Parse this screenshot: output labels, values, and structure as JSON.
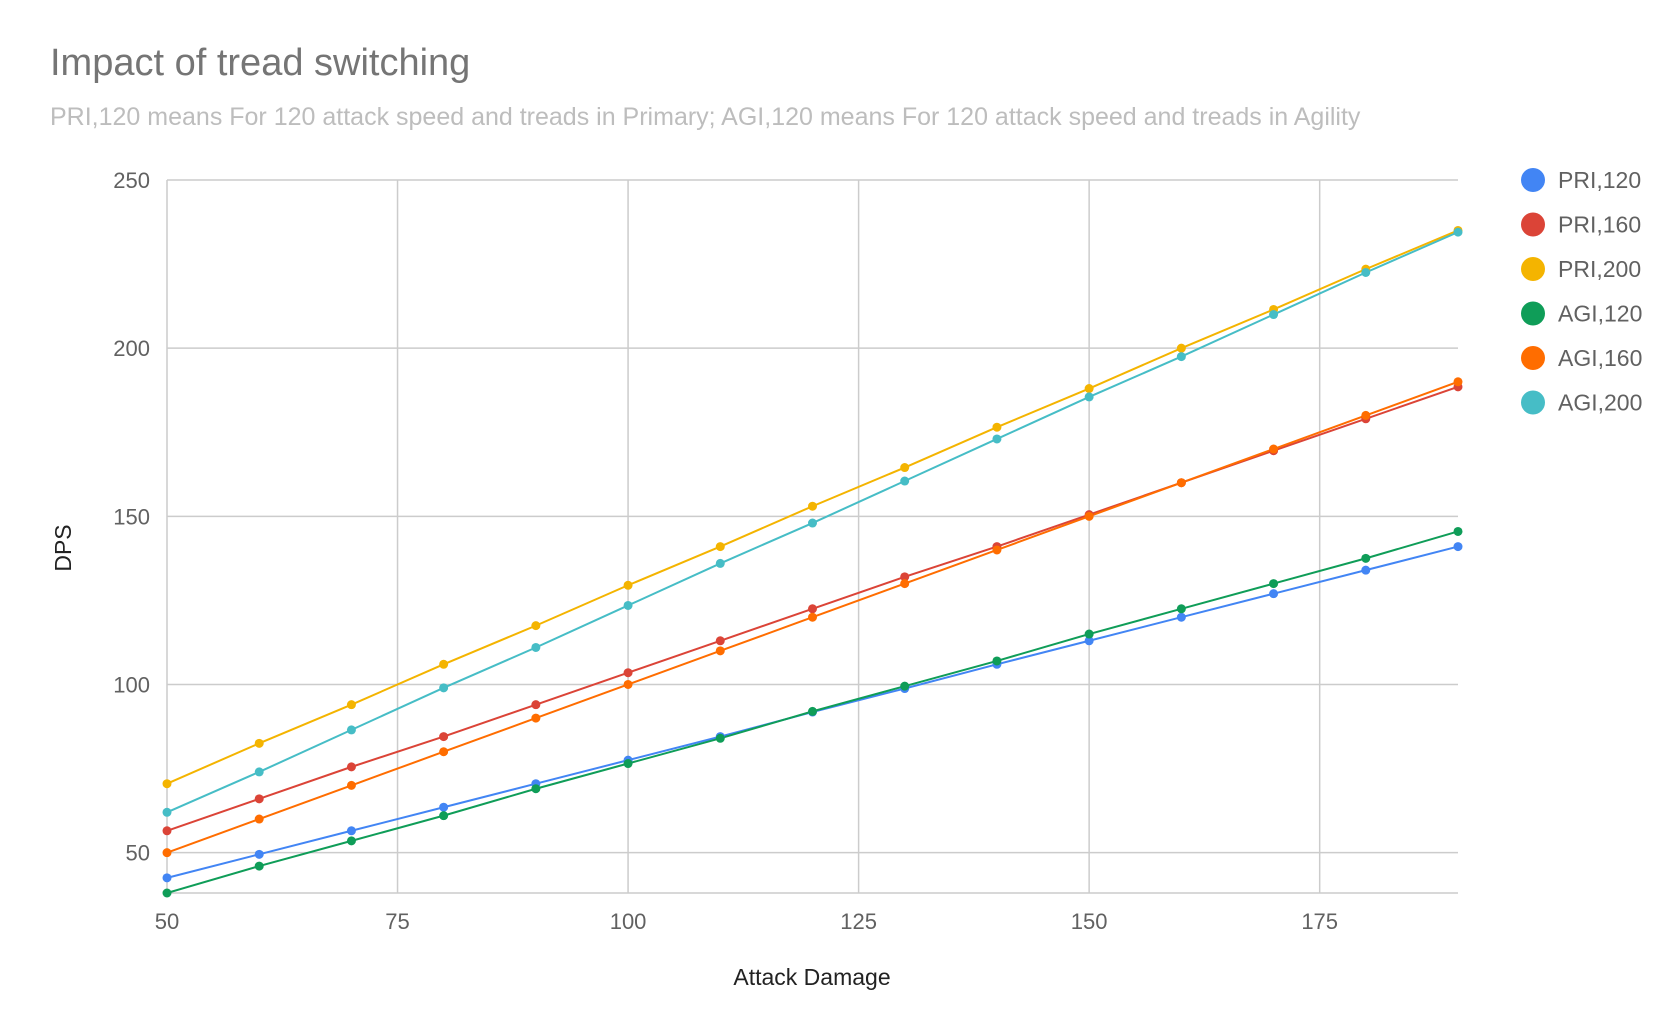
{
  "chart_data": {
    "type": "line",
    "title": "Impact of tread switching",
    "subtitle": "PRI,120 means For 120 attack speed and treads in Primary; AGI,120 means For 120 attack speed and treads in Agility",
    "xlabel": "Attack Damage",
    "ylabel": "DPS",
    "xlim": [
      50,
      190
    ],
    "ylim": [
      38,
      250
    ],
    "x_ticks": [
      50,
      75,
      100,
      125,
      150,
      175
    ],
    "y_ticks": [
      50,
      100,
      150,
      200,
      250
    ],
    "grid": true,
    "legend_position": "right",
    "x": [
      50,
      60,
      70,
      80,
      90,
      100,
      110,
      120,
      130,
      140,
      150,
      160,
      170,
      180,
      190
    ],
    "series": [
      {
        "name": "PRI,120",
        "color": "#4285f4",
        "values": [
          42.5,
          49.5,
          56.5,
          63.5,
          70.5,
          77.5,
          84.5,
          91.8,
          98.8,
          106,
          113,
          120,
          127,
          134,
          141
        ]
      },
      {
        "name": "PRI,160",
        "color": "#db4437",
        "values": [
          56.5,
          66,
          75.5,
          84.5,
          94,
          103.5,
          113,
          122.5,
          132,
          141,
          150.5,
          160,
          169.5,
          179,
          188.5
        ]
      },
      {
        "name": "PRI,200",
        "color": "#f4b400",
        "values": [
          70.5,
          82.5,
          94,
          106,
          117.5,
          129.5,
          141,
          153,
          164.5,
          176.5,
          188,
          200,
          211.5,
          223.5,
          235
        ]
      },
      {
        "name": "AGI,120",
        "color": "#0f9d58",
        "values": [
          38,
          46,
          53.5,
          61,
          69,
          76.5,
          84,
          92,
          99.5,
          107,
          115,
          122.5,
          130,
          137.5,
          145.5
        ]
      },
      {
        "name": "AGI,160",
        "color": "#ff6d00",
        "values": [
          50,
          60,
          70,
          80,
          90,
          100,
          110,
          120,
          130,
          140,
          150,
          160,
          170,
          180,
          190
        ]
      },
      {
        "name": "AGI,200",
        "color": "#46bdc6",
        "values": [
          62,
          74,
          86.5,
          99,
          111,
          123.5,
          136,
          148,
          160.5,
          173,
          185.5,
          197.5,
          210,
          222.5,
          234.5
        ]
      }
    ]
  }
}
